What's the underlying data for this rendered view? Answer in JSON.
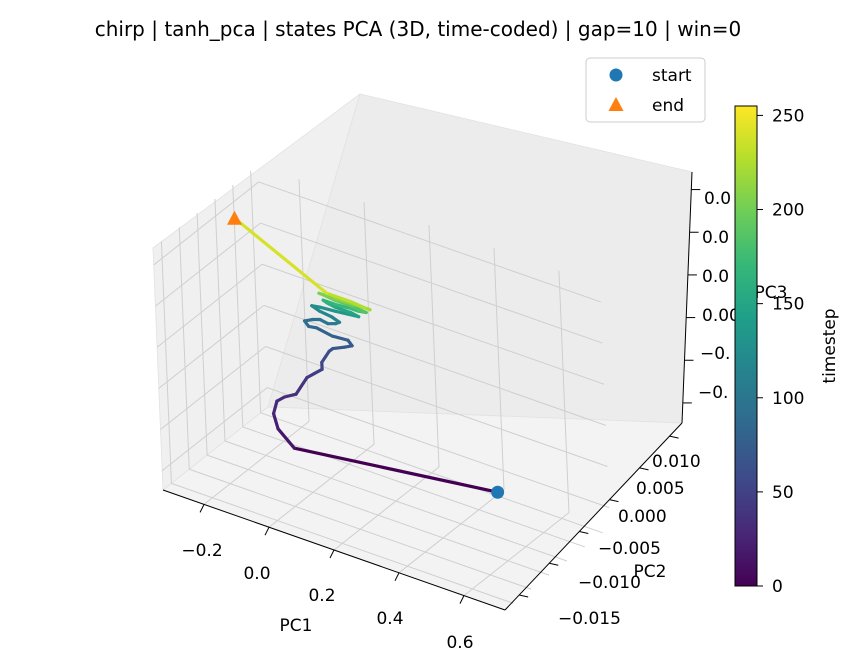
{
  "chart_data": {
    "type": "line",
    "projection": "3d",
    "title": "chirp | tanh_pca | states PCA (3D, time-coded) | gap=10 | win=0",
    "xlabel": "PC1",
    "ylabel": "PC2",
    "zlabel": "PC3",
    "x_ticks": [
      "−0.2",
      "0.0",
      "0.2",
      "0.4",
      "0.6"
    ],
    "y_ticks": [
      "−0.015",
      "−0.010",
      "−0.005",
      "0.000",
      "0.005",
      "0.010"
    ],
    "z_ticks": [
      "−0.",
      "−0.",
      "0.00",
      "0.0",
      "0.0",
      "0.0"
    ],
    "legend": {
      "placement": "top-right",
      "entries": [
        {
          "label": "start",
          "marker": "circle",
          "color": "#1f77b4"
        },
        {
          "label": "end",
          "marker": "triangle",
          "color": "#ff7f0e"
        }
      ]
    },
    "colorbar": {
      "label": "timestep",
      "colormap": "viridis",
      "ticks": [
        "0",
        "50",
        "100",
        "150",
        "200",
        "250"
      ],
      "range": [
        0,
        255
      ]
    },
    "colors": {
      "start": "#1f77b4",
      "end": "#ff7f0e",
      "pane": "#f2f2f2",
      "grid": "#cfcfcf"
    },
    "series": [
      {
        "timesteps": [
          0,
          16,
          22,
          28,
          30,
          33,
          36,
          40,
          44,
          48,
          52,
          56,
          60,
          63,
          66,
          69,
          72,
          76,
          80,
          84,
          88,
          92,
          96,
          100,
          104,
          108,
          112,
          116,
          120,
          125,
          130,
          135,
          140,
          145,
          150,
          155,
          160,
          165,
          170,
          175,
          180,
          185,
          190,
          195,
          200,
          205,
          210,
          215,
          220,
          225,
          230,
          240,
          250,
          255
        ],
        "x": [
          0.44,
          -0.08,
          -0.12,
          -0.13,
          -0.12,
          -0.1,
          -0.07,
          -0.05,
          -0.04,
          -0.02,
          0.0,
          0.0,
          0.01,
          0.02,
          0.03,
          0.06,
          0.08,
          0.07,
          0.03,
          -0.01,
          -0.03,
          -0.04,
          -0.02,
          0.0,
          0.02,
          0.04,
          0.05,
          0.03,
          0.0,
          -0.02,
          0.0,
          0.04,
          0.07,
          0.1,
          0.08,
          0.04,
          0.02,
          0.01,
          0.04,
          0.08,
          0.1,
          0.12,
          0.09,
          0.04,
          0.01,
          0.0,
          0.04,
          0.09,
          0.13,
          0.12,
          0.08,
          0.02,
          -0.2,
          -0.21
        ],
        "y": [
          0.003,
          0.003,
          0.002,
          0.002,
          0.002,
          0.002,
          0.002,
          0.002,
          0.002,
          0.002,
          0.002,
          0.002,
          0.002,
          0.002,
          0.002,
          0.002,
          0.002,
          0.002,
          0.002,
          0.002,
          0.002,
          0.002,
          0.002,
          0.002,
          0.002,
          0.002,
          0.002,
          0.002,
          0.002,
          0.002,
          0.002,
          0.002,
          0.002,
          0.002,
          0.002,
          0.002,
          0.002,
          0.002,
          0.002,
          0.002,
          0.002,
          0.002,
          0.002,
          0.002,
          0.002,
          0.002,
          0.002,
          0.002,
          0.002,
          0.002,
          0.002,
          0.002,
          0.002,
          0.002
        ],
        "z": [
          -0.006,
          -0.008,
          -0.007,
          -0.006,
          -0.005,
          -0.0045,
          -0.004,
          -0.003,
          -0.0025,
          -0.002,
          -0.0015,
          -0.001,
          -0.0005,
          0.0,
          0.0003,
          0.0007,
          0.001,
          0.0013,
          0.0012,
          0.0014,
          0.0013,
          0.0016,
          0.0019,
          0.0021,
          0.002,
          0.0022,
          0.0024,
          0.0026,
          0.0027,
          0.0029,
          0.003,
          0.0031,
          0.0032,
          0.0033,
          0.0034,
          0.0034,
          0.0035,
          0.0036,
          0.0036,
          0.0037,
          0.0037,
          0.0038,
          0.0039,
          0.0039,
          0.004,
          0.004,
          0.004,
          0.0041,
          0.0041,
          0.0041,
          0.0042,
          0.0042,
          0.0072,
          0.0073
        ]
      }
    ],
    "start_point": {
      "x": 0.44,
      "y": 0.003,
      "z": -0.006
    },
    "end_point": {
      "x": -0.21,
      "y": 0.002,
      "z": 0.0073
    }
  }
}
